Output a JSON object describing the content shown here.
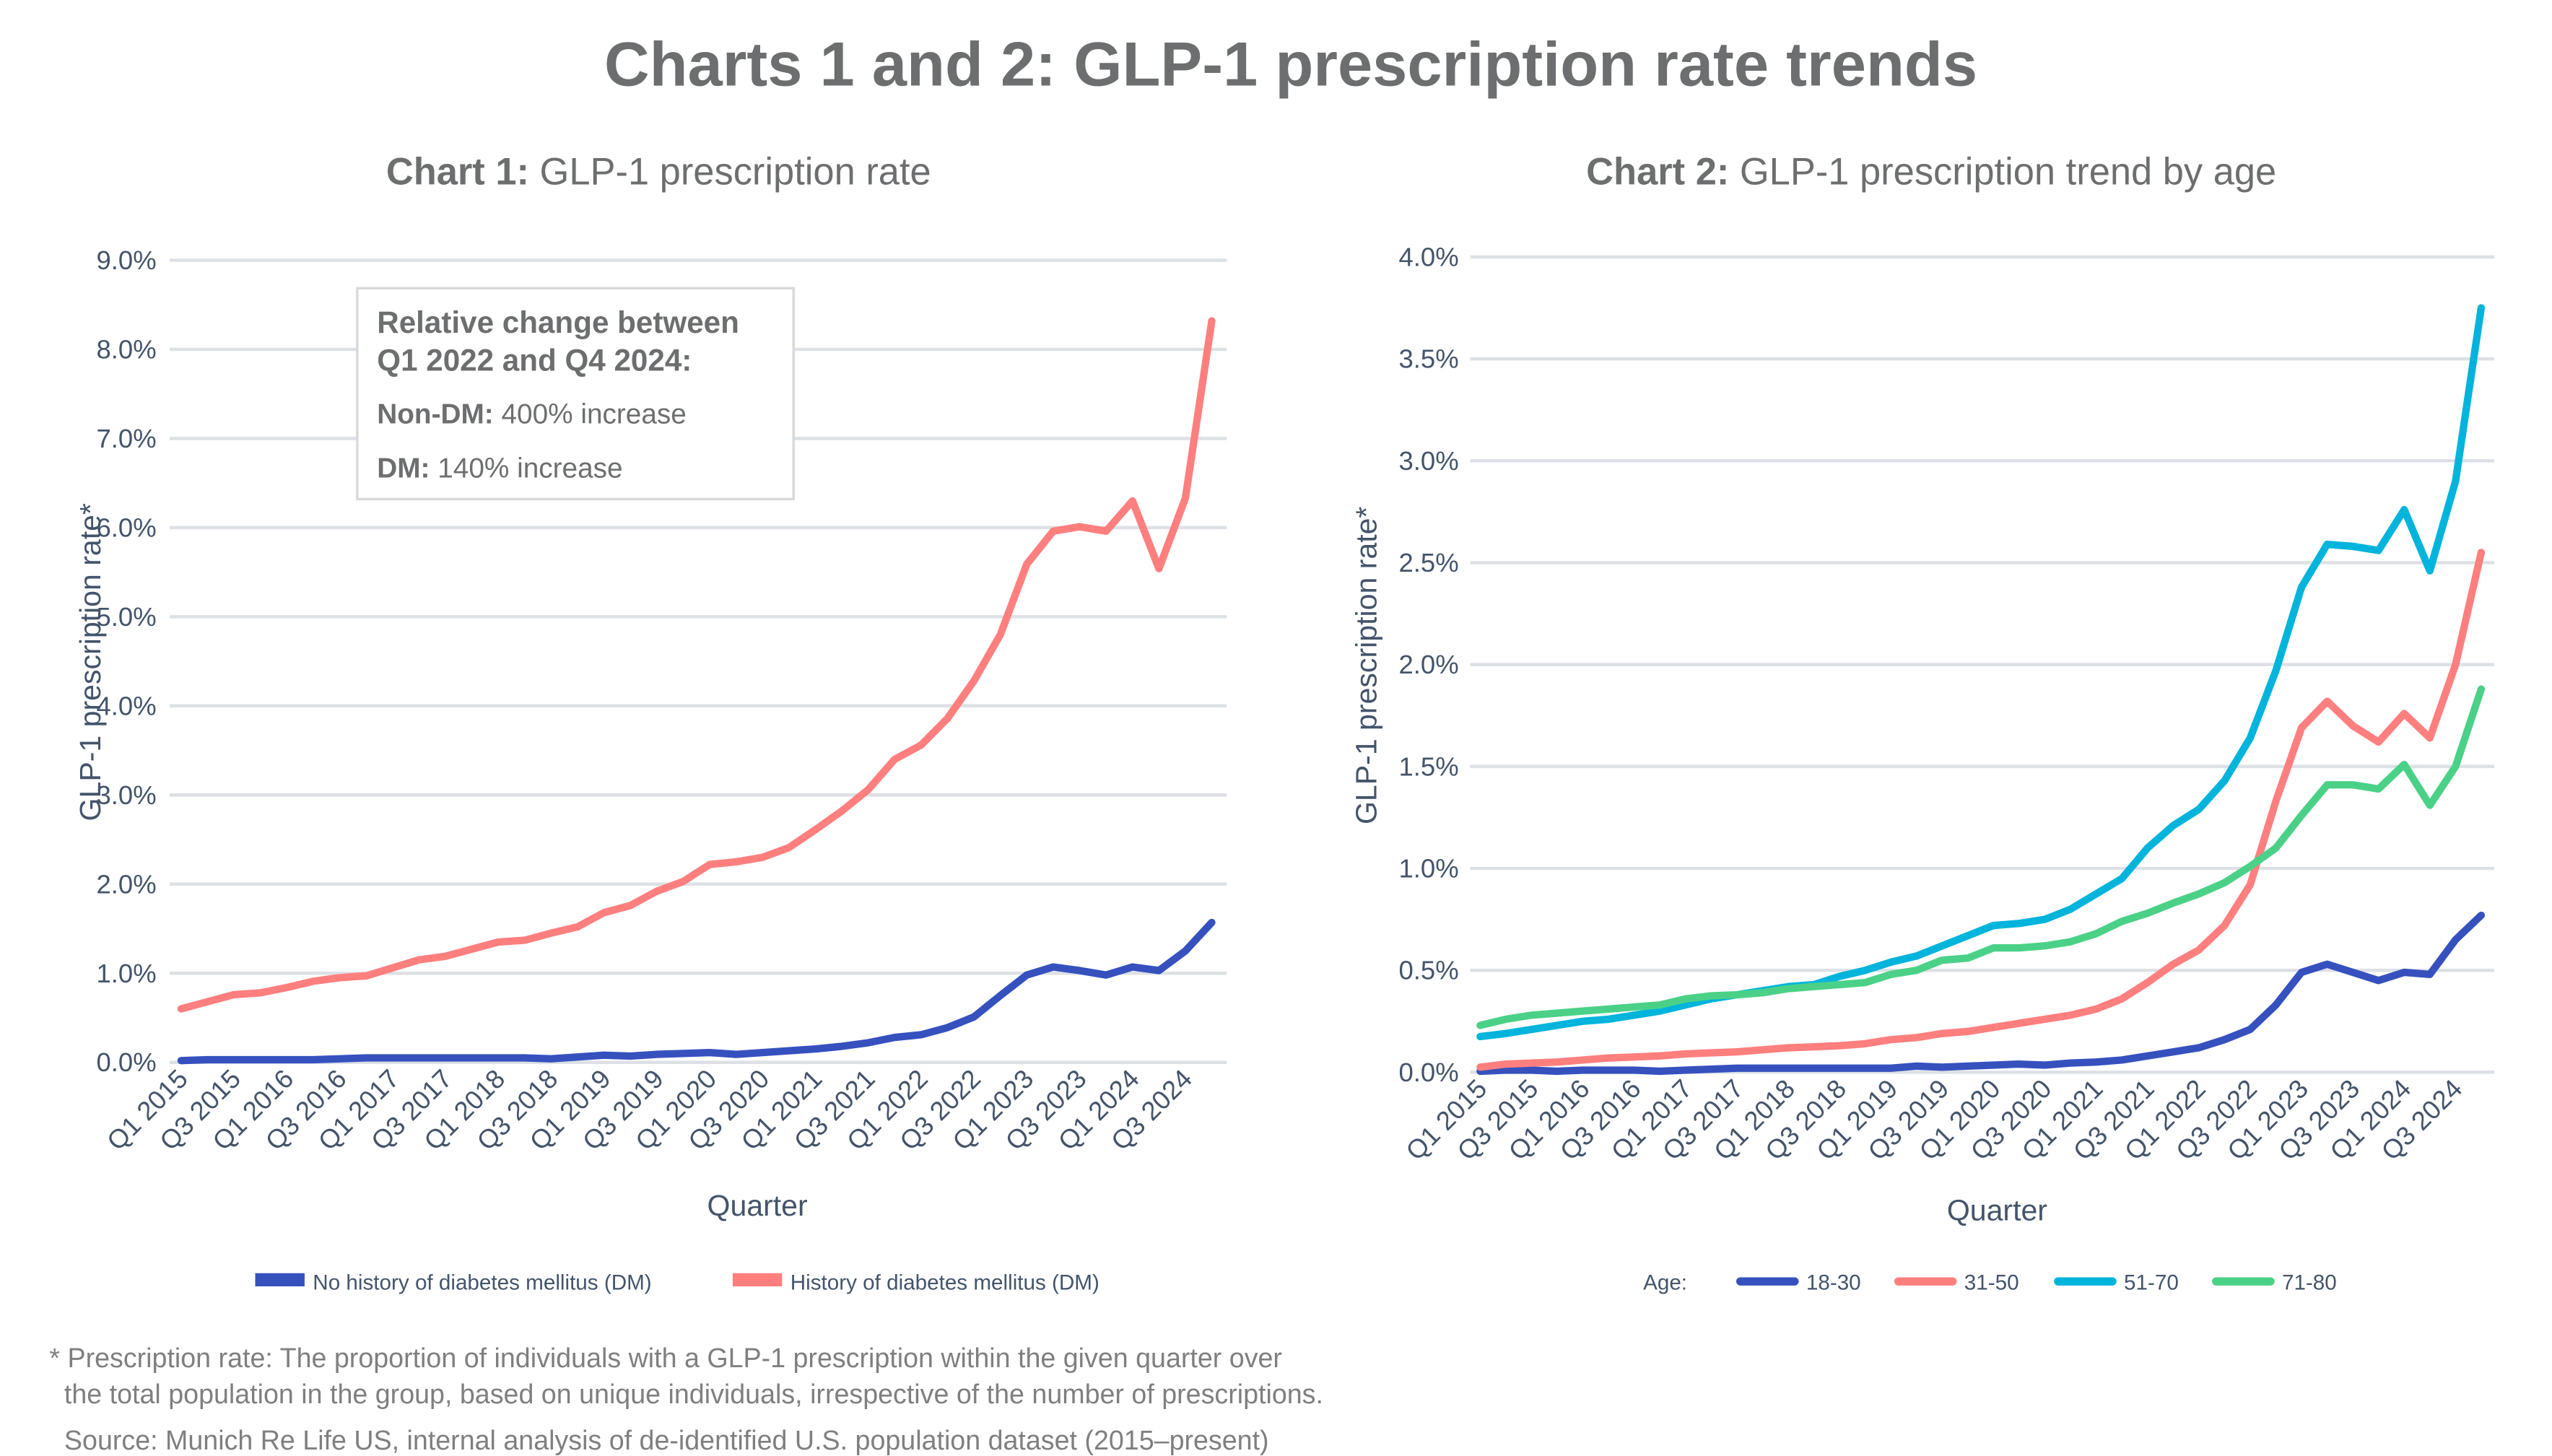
{
  "title": "Charts 1 and 2: GLP-1 prescription rate trends",
  "footnote": {
    "line1": "* Prescription rate: The proportion of individuals with a GLP-1 prescription within the given quarter over",
    "line2": "the total population in the group, based on unique individuals, irrespective of the number of prescriptions.",
    "source": "Source: Munich Re Life US, internal analysis of de-identified U.S. population dataset (2015–present)"
  },
  "annotation": {
    "heading1": "Relative change between",
    "heading2": "Q1 2022 and Q4 2024:",
    "nondm_label": "Non-DM:",
    "nondm_value": " 400% increase",
    "dm_label": "DM:",
    "dm_value": " 140% increase"
  },
  "chart_data": [
    {
      "type": "line",
      "title_bold": "Chart 1:",
      "title": " GLP-1 prescription rate",
      "xlabel": "Quarter",
      "ylabel": "GLP-1 prescription rate*",
      "ylim": [
        0,
        9
      ],
      "y_ticks": [
        "0.0%",
        "1.0%",
        "2.0%",
        "3.0%",
        "4.0%",
        "5.0%",
        "6.0%",
        "7.0%",
        "8.0%",
        "9.0%"
      ],
      "x_tick_labels": [
        "Q1 2015",
        "Q3 2015",
        "Q1 2016",
        "Q3 2016",
        "Q1 2017",
        "Q3 2017",
        "Q1 2018",
        "Q3 2018",
        "Q1 2019",
        "Q3 2019",
        "Q1 2020",
        "Q3 2020",
        "Q1 2021",
        "Q3 2021",
        "Q1 2022",
        "Q3 2022",
        "Q1 2023",
        "Q3 2023",
        "Q1 2024",
        "Q3 2024"
      ],
      "x_range": [
        "Q1 2015",
        "Q4 2024"
      ],
      "grid": true,
      "legend_position": "bottom",
      "legend_prefix": "",
      "series": [
        {
          "name": "No history of diabetes mellitus (DM)",
          "color": "#3651be",
          "values": [
            0.02,
            0.03,
            0.03,
            0.03,
            0.03,
            0.03,
            0.04,
            0.05,
            0.05,
            0.05,
            0.05,
            0.05,
            0.05,
            0.05,
            0.04,
            0.06,
            0.08,
            0.07,
            0.09,
            0.1,
            0.11,
            0.09,
            0.11,
            0.13,
            0.15,
            0.18,
            0.22,
            0.28,
            0.31,
            0.39,
            0.51,
            0.75,
            0.98,
            1.07,
            1.03,
            0.98,
            1.07,
            1.03,
            1.25,
            1.57
          ]
        },
        {
          "name": "History of diabetes mellitus (DM)",
          "color": "#ff7f7f",
          "values": [
            0.6,
            0.68,
            0.76,
            0.78,
            0.84,
            0.91,
            0.95,
            0.97,
            1.06,
            1.15,
            1.19,
            1.27,
            1.35,
            1.37,
            1.45,
            1.52,
            1.68,
            1.76,
            1.92,
            2.03,
            2.22,
            2.25,
            2.3,
            2.41,
            2.61,
            2.82,
            3.06,
            3.4,
            3.56,
            3.86,
            4.28,
            4.8,
            5.59,
            5.96,
            6.01,
            5.96,
            6.3,
            5.54,
            6.33,
            8.32
          ]
        }
      ]
    },
    {
      "type": "line",
      "title_bold": "Chart 2:",
      "title": " GLP-1 prescription trend by age",
      "xlabel": "Quarter",
      "ylabel": "GLP-1 prescription rate*",
      "ylim": [
        0,
        4
      ],
      "y_ticks": [
        "0.0%",
        "0.5%",
        "1.0%",
        "1.5%",
        "2.0%",
        "2.5%",
        "3.0%",
        "3.5%",
        "4.0%"
      ],
      "x_tick_labels": [
        "Q1 2015",
        "Q3 2015",
        "Q1 2016",
        "Q3 2016",
        "Q1 2017",
        "Q3 2017",
        "Q1 2018",
        "Q3 2018",
        "Q1 2019",
        "Q3 2019",
        "Q1 2020",
        "Q3 2020",
        "Q1 2021",
        "Q3 2021",
        "Q1 2022",
        "Q3 2022",
        "Q1 2023",
        "Q3 2023",
        "Q1 2024",
        "Q3 2024"
      ],
      "x_range": [
        "Q1 2015",
        "Q4 2024"
      ],
      "grid": true,
      "legend_position": "bottom",
      "legend_prefix": "Age:",
      "series": [
        {
          "name": "18-30",
          "color": "#3651be",
          "values": [
            0.005,
            0.01,
            0.01,
            0.005,
            0.01,
            0.01,
            0.01,
            0.005,
            0.01,
            0.015,
            0.02,
            0.02,
            0.02,
            0.02,
            0.02,
            0.02,
            0.02,
            0.03,
            0.025,
            0.03,
            0.035,
            0.04,
            0.035,
            0.045,
            0.05,
            0.06,
            0.08,
            0.1,
            0.12,
            0.16,
            0.21,
            0.33,
            0.49,
            0.53,
            0.49,
            0.45,
            0.49,
            0.48,
            0.65,
            0.77
          ]
        },
        {
          "name": "31-50",
          "color": "#ff7f7f",
          "values": [
            0.025,
            0.04,
            0.045,
            0.05,
            0.06,
            0.07,
            0.075,
            0.08,
            0.09,
            0.095,
            0.1,
            0.11,
            0.12,
            0.125,
            0.13,
            0.14,
            0.16,
            0.17,
            0.19,
            0.2,
            0.22,
            0.24,
            0.26,
            0.28,
            0.31,
            0.36,
            0.44,
            0.53,
            0.6,
            0.72,
            0.92,
            1.33,
            1.69,
            1.82,
            1.7,
            1.62,
            1.76,
            1.64,
            2.0,
            2.55
          ]
        },
        {
          "name": "51-70",
          "color": "#00b4dc",
          "values": [
            0.175,
            0.19,
            0.21,
            0.23,
            0.25,
            0.26,
            0.28,
            0.3,
            0.33,
            0.36,
            0.38,
            0.4,
            0.42,
            0.43,
            0.47,
            0.5,
            0.54,
            0.57,
            0.62,
            0.67,
            0.72,
            0.73,
            0.75,
            0.8,
            0.875,
            0.95,
            1.1,
            1.21,
            1.29,
            1.43,
            1.64,
            1.97,
            2.38,
            2.59,
            2.58,
            2.56,
            2.76,
            2.46,
            2.9,
            3.75
          ]
        },
        {
          "name": "71-80",
          "color": "#4bd187",
          "values": [
            0.23,
            0.26,
            0.28,
            0.29,
            0.3,
            0.31,
            0.32,
            0.33,
            0.36,
            0.375,
            0.38,
            0.39,
            0.41,
            0.42,
            0.43,
            0.44,
            0.48,
            0.5,
            0.55,
            0.56,
            0.61,
            0.61,
            0.62,
            0.64,
            0.68,
            0.74,
            0.78,
            0.83,
            0.875,
            0.93,
            1.01,
            1.1,
            1.26,
            1.41,
            1.41,
            1.39,
            1.51,
            1.31,
            1.5,
            1.88
          ]
        }
      ]
    }
  ]
}
